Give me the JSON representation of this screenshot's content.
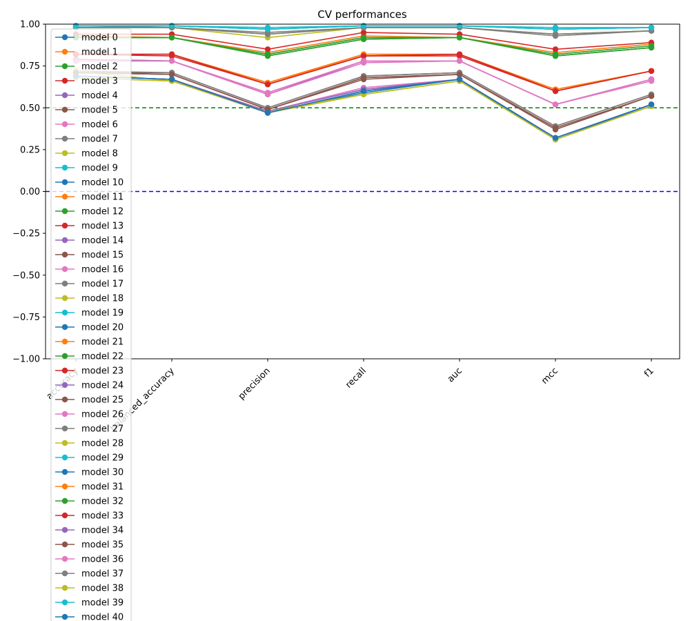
{
  "chart_data": {
    "type": "line",
    "title": "CV performances",
    "xlabel": "",
    "ylabel": "",
    "categories": [
      "accuracy",
      "balanced_accuracy",
      "precision",
      "recall",
      "auc",
      "mcc",
      "f1"
    ],
    "ylim": [
      -1.0,
      1.0
    ],
    "yticks": [
      "−1.00",
      "−0.75",
      "−0.50",
      "−0.25",
      "0.00",
      "0.25",
      "0.50",
      "0.75",
      "1.00"
    ],
    "ytick_values": [
      -1.0,
      -0.75,
      -0.5,
      -0.25,
      0.0,
      0.25,
      0.5,
      0.75,
      1.0
    ],
    "grid": false,
    "legend_position": "left, overflowing below plot",
    "reference_lines": [
      {
        "y": 0.5,
        "color": "#008000",
        "style": "dashed"
      },
      {
        "y": 0.0,
        "color": "#0000ff",
        "style": "dashed"
      }
    ],
    "palette": [
      "#1f77b4",
      "#ff7f0e",
      "#2ca02c",
      "#d62728",
      "#9467bd",
      "#8c564b",
      "#e377c2",
      "#7f7f7f",
      "#bcbd22",
      "#17becf"
    ],
    "series": [
      {
        "name": "model 0",
        "values": [
          0.99,
          0.99,
          0.97,
          0.99,
          0.99,
          0.97,
          0.98
        ]
      },
      {
        "name": "model 1",
        "values": [
          0.93,
          0.92,
          0.83,
          0.93,
          0.92,
          0.83,
          0.88
        ]
      },
      {
        "name": "model 2",
        "values": [
          0.92,
          0.92,
          0.81,
          0.91,
          0.92,
          0.81,
          0.86
        ]
      },
      {
        "name": "model 3",
        "values": [
          0.94,
          0.94,
          0.85,
          0.95,
          0.94,
          0.85,
          0.89
        ]
      },
      {
        "name": "model 4",
        "values": [
          0.79,
          0.78,
          0.59,
          0.78,
          0.78,
          0.52,
          0.67
        ]
      },
      {
        "name": "model 5",
        "values": [
          0.71,
          0.7,
          0.49,
          0.68,
          0.7,
          0.38,
          0.57
        ]
      },
      {
        "name": "model 6",
        "values": [
          0.78,
          0.78,
          0.58,
          0.77,
          0.78,
          0.52,
          0.67
        ]
      },
      {
        "name": "model 7",
        "values": [
          0.99,
          0.98,
          0.95,
          0.98,
          0.98,
          0.94,
          0.96
        ]
      },
      {
        "name": "model 8",
        "values": [
          0.98,
          0.98,
          0.92,
          0.98,
          0.98,
          0.94,
          0.96
        ]
      },
      {
        "name": "model 9",
        "values": [
          0.99,
          0.99,
          0.98,
          0.99,
          0.99,
          0.98,
          0.98
        ]
      },
      {
        "name": "model 10",
        "values": [
          0.69,
          0.67,
          0.47,
          0.6,
          0.67,
          0.32,
          0.52
        ]
      },
      {
        "name": "model 11",
        "values": [
          0.82,
          0.82,
          0.65,
          0.82,
          0.82,
          0.61,
          0.72
        ]
      },
      {
        "name": "model 12",
        "values": [
          0.92,
          0.92,
          0.82,
          0.92,
          0.92,
          0.82,
          0.87
        ]
      },
      {
        "name": "model 13",
        "values": [
          0.82,
          0.81,
          0.64,
          0.81,
          0.81,
          0.6,
          0.72
        ]
      },
      {
        "name": "model 14",
        "values": [
          0.69,
          0.67,
          0.48,
          0.61,
          0.67,
          0.32,
          0.52
        ]
      },
      {
        "name": "model 15",
        "values": [
          0.71,
          0.71,
          0.5,
          0.69,
          0.71,
          0.39,
          0.58
        ]
      },
      {
        "name": "model 16",
        "values": [
          0.69,
          0.67,
          0.48,
          0.62,
          0.67,
          0.32,
          0.52
        ]
      },
      {
        "name": "model 17",
        "values": [
          0.72,
          0.71,
          0.5,
          0.69,
          0.71,
          0.39,
          0.58
        ]
      },
      {
        "name": "model 18",
        "values": [
          0.68,
          0.66,
          0.47,
          0.58,
          0.66,
          0.31,
          0.51
        ]
      },
      {
        "name": "model 19",
        "values": [
          0.99,
          0.99,
          0.97,
          0.99,
          0.99,
          0.97,
          0.98
        ]
      },
      {
        "name": "model 20",
        "values": [
          0.69,
          0.67,
          0.47,
          0.59,
          0.67,
          0.31,
          0.52
        ]
      },
      {
        "name": "model 21",
        "values": [
          0.82,
          0.82,
          0.65,
          0.82,
          0.82,
          0.61,
          0.72
        ]
      },
      {
        "name": "model 22",
        "values": [
          0.92,
          0.92,
          0.81,
          0.91,
          0.92,
          0.81,
          0.86
        ]
      },
      {
        "name": "model 23",
        "values": [
          0.82,
          0.82,
          0.64,
          0.81,
          0.82,
          0.6,
          0.72
        ]
      },
      {
        "name": "model 24",
        "values": [
          0.79,
          0.78,
          0.58,
          0.78,
          0.78,
          0.52,
          0.67
        ]
      },
      {
        "name": "model 25",
        "values": [
          0.71,
          0.7,
          0.49,
          0.67,
          0.7,
          0.37,
          0.57
        ]
      },
      {
        "name": "model 26",
        "values": [
          0.78,
          0.78,
          0.58,
          0.77,
          0.78,
          0.52,
          0.67
        ]
      },
      {
        "name": "model 27",
        "values": [
          0.98,
          0.98,
          0.94,
          0.98,
          0.98,
          0.93,
          0.96
        ]
      },
      {
        "name": "model 28",
        "values": [
          0.72,
          0.66,
          0.48,
          0.58,
          0.66,
          0.31,
          0.51
        ]
      },
      {
        "name": "model 29",
        "values": [
          0.99,
          0.99,
          0.97,
          0.99,
          0.99,
          0.97,
          0.98
        ]
      },
      {
        "name": "model 30",
        "values": [
          0.69,
          0.67,
          0.47,
          0.6,
          0.67,
          0.32,
          0.52
        ]
      },
      {
        "name": "model 31",
        "values": [
          0.82,
          0.82,
          0.64,
          0.82,
          0.82,
          0.6,
          0.72
        ]
      },
      {
        "name": "model 32",
        "values": [
          0.92,
          0.92,
          0.82,
          0.92,
          0.92,
          0.81,
          0.86
        ]
      },
      {
        "name": "model 33",
        "values": [
          0.82,
          0.82,
          0.64,
          0.81,
          0.82,
          0.6,
          0.72
        ]
      },
      {
        "name": "model 34",
        "values": [
          0.69,
          0.67,
          0.48,
          0.61,
          0.67,
          0.32,
          0.52
        ]
      },
      {
        "name": "model 35",
        "values": [
          0.71,
          0.7,
          0.49,
          0.68,
          0.7,
          0.38,
          0.57
        ]
      },
      {
        "name": "model 36",
        "values": [
          0.78,
          0.78,
          0.59,
          0.78,
          0.78,
          0.52,
          0.66
        ]
      },
      {
        "name": "model 37",
        "values": [
          0.98,
          0.98,
          0.94,
          0.98,
          0.98,
          0.94,
          0.96
        ]
      },
      {
        "name": "model 38",
        "values": [
          0.68,
          0.66,
          0.47,
          0.58,
          0.66,
          0.31,
          0.51
        ]
      },
      {
        "name": "model 39",
        "values": [
          0.99,
          0.99,
          0.97,
          0.99,
          0.99,
          0.97,
          0.98
        ]
      },
      {
        "name": "model 40",
        "values": [
          0.69,
          0.67,
          0.47,
          0.6,
          0.67,
          0.32,
          0.52
        ]
      }
    ]
  }
}
